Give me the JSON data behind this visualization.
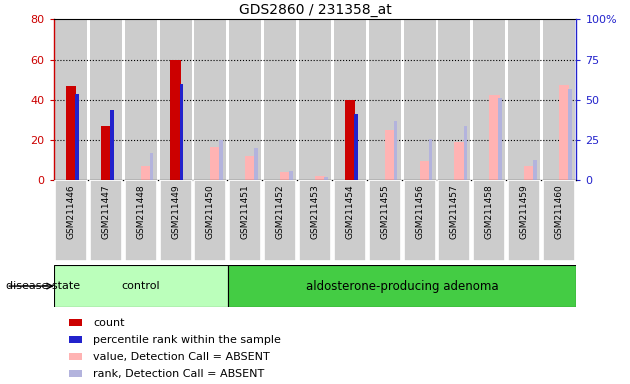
{
  "title": "GDS2860 / 231358_at",
  "samples": [
    "GSM211446",
    "GSM211447",
    "GSM211448",
    "GSM211449",
    "GSM211450",
    "GSM211451",
    "GSM211452",
    "GSM211453",
    "GSM211454",
    "GSM211455",
    "GSM211456",
    "GSM211457",
    "GSM211458",
    "GSM211459",
    "GSM211460"
  ],
  "count": [
    47,
    27,
    0,
    60,
    0,
    0,
    0,
    0,
    40,
    0,
    0,
    0,
    0,
    0,
    0
  ],
  "percentile_rank": [
    43,
    35,
    0,
    48,
    0,
    0,
    0,
    0,
    33,
    0,
    0,
    0,
    0,
    0,
    0
  ],
  "absent_value": [
    0,
    0,
    9,
    0,
    21,
    15,
    5,
    3,
    0,
    31,
    12,
    24,
    53,
    9,
    59
  ],
  "absent_rank": [
    0,
    0,
    17,
    0,
    25,
    20,
    6,
    2,
    0,
    37,
    26,
    34,
    51,
    13,
    57
  ],
  "ylim_left": [
    0,
    80
  ],
  "ylim_right": [
    0,
    100
  ],
  "yticks_left": [
    0,
    20,
    40,
    60,
    80
  ],
  "yticks_right": [
    0,
    25,
    50,
    75,
    100
  ],
  "yticklabels_right": [
    "0",
    "25",
    "50",
    "75",
    "100%"
  ],
  "n_control": 5,
  "n_adenoma": 10,
  "group_label_control": "control",
  "group_label_adenoma": "aldosterone-producing adenoma",
  "disease_state_label": "disease state",
  "color_count": "#cc0000",
  "color_percentile": "#2222cc",
  "color_absent_value": "#ffb3b3",
  "color_absent_rank": "#b3b3dd",
  "bar_bg": "#cccccc",
  "control_bg": "#bbffbb",
  "adenoma_bg": "#44cc44",
  "legend_items": [
    "count",
    "percentile rank within the sample",
    "value, Detection Call = ABSENT",
    "rank, Detection Call = ABSENT"
  ]
}
